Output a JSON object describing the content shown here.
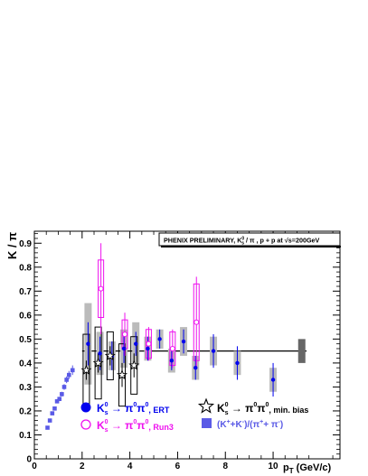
{
  "chart_data": {
    "type": "scatter",
    "title_box": {
      "prefix": "PHENIX PRELIMINARY, K",
      "sup": "0",
      "sub": "s",
      "mid": " / π ,  p + p  at √s=200GeV"
    },
    "xlabel": {
      "main": "p",
      "sub": "T",
      "tail": " (GeV/c)"
    },
    "ylabel": "K / π",
    "xlim": [
      0,
      12.8
    ],
    "ylim": [
      0,
      0.95
    ],
    "x_ticks": [
      0,
      2,
      4,
      6,
      8,
      10
    ],
    "y_ticks": [
      0,
      0.1,
      0.2,
      0.3,
      0.4,
      0.5,
      0.6,
      0.7,
      0.8,
      0.9
    ],
    "y_tick_labels": [
      "0",
      "0.1",
      "0.2",
      "0.3",
      "0.4",
      "0.5",
      "0.6",
      "0.7",
      "0.8",
      "0.9"
    ],
    "reference_line": {
      "y": 0.45,
      "x_range": [
        2.0,
        11.4
      ]
    },
    "normalization_box": {
      "x": 11.2,
      "y": 0.45,
      "half_height": 0.05,
      "color": "#666666"
    },
    "colors": {
      "ert": "#0000ee",
      "run3": "#ee11ee",
      "charged": "#5a5ae6",
      "syst_grey": "#bbbbbb",
      "minbias": "#000000"
    },
    "series": [
      {
        "marker": "filled-circle",
        "x": [
          2.25,
          2.75,
          3.25,
          3.75,
          4.25,
          4.75,
          5.25,
          5.75,
          6.25,
          6.75,
          7.5,
          8.5,
          10.0
        ],
        "y": [
          0.48,
          0.44,
          0.43,
          0.46,
          0.48,
          0.46,
          0.5,
          0.41,
          0.49,
          0.38,
          0.45,
          0.4,
          0.33
        ],
        "stat_err": [
          0.09,
          0.07,
          0.06,
          0.06,
          0.05,
          0.05,
          0.04,
          0.04,
          0.05,
          0.05,
          0.07,
          0.07,
          0.07
        ],
        "syst_err": [
          0.17,
          0.09,
          0.06,
          0.08,
          0.09,
          0.05,
          0.04,
          0.05,
          0.06,
          0.05,
          0.06,
          0.05,
          0.05
        ]
      },
      {
        "marker": "open-circle",
        "x": [
          2.75,
          3.75,
          4.75,
          5.75,
          6.75
        ],
        "y": [
          0.71,
          0.52,
          0.48,
          0.46,
          0.57
        ],
        "stat_err": [
          0.19,
          0.09,
          0.07,
          0.08,
          0.19
        ],
        "syst_err": [
          0.12,
          0.06,
          0.06,
          0.07,
          0.16
        ]
      },
      {
        "marker": "open-star",
        "x": [
          2.25,
          2.75,
          3.25,
          3.75,
          4.25
        ],
        "y": [
          0.37,
          0.4,
          0.43,
          0.35,
          0.39
        ],
        "stat_err": [
          0.04,
          0.04,
          0.04,
          0.05,
          0.05
        ],
        "syst_err": [
          0.15,
          0.15,
          0.1,
          0.13,
          0.12
        ]
      },
      {
        "marker": "filled-square",
        "x": [
          0.55,
          0.65,
          0.75,
          0.85,
          0.95,
          1.05,
          1.15,
          1.25,
          1.35,
          1.45,
          1.6
        ],
        "y": [
          0.13,
          0.16,
          0.19,
          0.21,
          0.24,
          0.25,
          0.27,
          0.3,
          0.33,
          0.35,
          0.37
        ],
        "stat_err": [
          0.005,
          0.005,
          0.006,
          0.007,
          0.008,
          0.009,
          0.01,
          0.012,
          0.014,
          0.017,
          0.02
        ]
      }
    ],
    "legend": {
      "ert": {
        "pre": "K",
        "sup": "0",
        "sub": "s",
        "arrow": " → ",
        "decay": "π",
        "decay_sup": "0",
        "decay2": "π",
        "decay2_sup": "0",
        "tag": ", ERT"
      },
      "run3": {
        "pre": "K",
        "sup": "0",
        "sub": "s",
        "arrow": " → ",
        "decay": "π",
        "decay_sup": "0",
        "decay2": "π",
        "decay2_sup": "0",
        "tag": ", Run3"
      },
      "minbias": {
        "pre": "K",
        "sup": "0",
        "sub": "s",
        "arrow": " → ",
        "decay": "π",
        "decay_sup": "0",
        "decay2": "π",
        "decay2_sup": "0",
        "tag": ", min. bias"
      },
      "charged": {
        "text1": "(K",
        "s1": "+",
        "text2": "+K",
        "s2": "-",
        "text3": ")/(π",
        "s3": "+",
        "text4": "+ π",
        "s4": "-",
        "text5": ")"
      }
    }
  }
}
